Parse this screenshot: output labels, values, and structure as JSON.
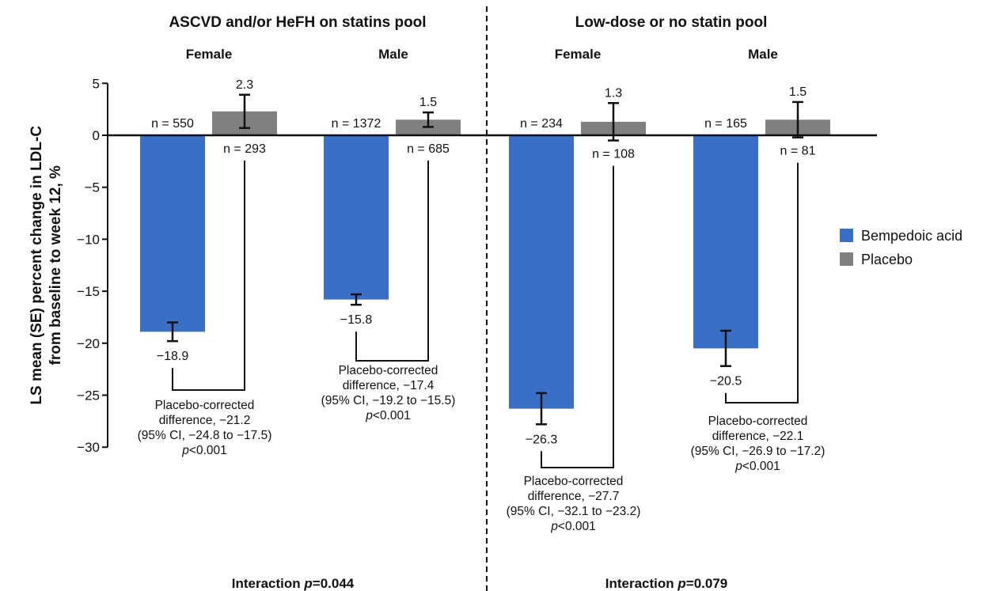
{
  "chart_data": {
    "type": "bar",
    "ylabel_lines": [
      "LS mean (SE) percent change in LDL-C",
      "from baseline to week 12, %"
    ],
    "ylim": [
      -30,
      5
    ],
    "yticks": [
      "5",
      "0",
      "-5",
      "-10",
      "-15",
      "-20",
      "-25",
      "-30"
    ],
    "ytick_values": [
      5,
      0,
      -5,
      -10,
      -15,
      -20,
      -25,
      -30
    ],
    "legend": [
      {
        "name": "Bempedoic acid",
        "color": "#3a6fc8"
      },
      {
        "name": "Placebo",
        "color": "#808080"
      }
    ],
    "legend_position": "right",
    "pools": [
      {
        "title": "ASCVD and/or HeFH on statins pool",
        "interaction_prefix": "Interaction ",
        "interaction_italic": "p",
        "interaction_value": "=0.044",
        "groups": [
          {
            "sex": "Female",
            "bempedoic": {
              "value": -18.9,
              "se": 0.9,
              "label": "−18.9",
              "n": "n = 550"
            },
            "placebo": {
              "value": 2.3,
              "se": 1.6,
              "label": "2.3",
              "n": "n = 293"
            },
            "diff_lines": [
              "Placebo-corrected",
              "difference, −21.2",
              "(95% CI, −24.8 to −17.5)"
            ],
            "diff_p_italic": "p",
            "diff_p_value": "<0.001"
          },
          {
            "sex": "Male",
            "bempedoic": {
              "value": -15.8,
              "se": 0.5,
              "label": "−15.8",
              "n": "n = 1372"
            },
            "placebo": {
              "value": 1.5,
              "se": 0.7,
              "label": "1.5",
              "n": "n = 685"
            },
            "diff_lines": [
              "Placebo-corrected",
              "difference, −17.4",
              "(95% CI, −19.2 to −15.5)"
            ],
            "diff_p_italic": "p",
            "diff_p_value": "<0.001"
          }
        ]
      },
      {
        "title": "Low-dose or no statin pool",
        "interaction_prefix": "Interaction ",
        "interaction_italic": "p",
        "interaction_value": "=0.079",
        "groups": [
          {
            "sex": "Female",
            "bempedoic": {
              "value": -26.3,
              "se": 1.5,
              "label": "−26.3",
              "n": "n = 234"
            },
            "placebo": {
              "value": 1.3,
              "se": 1.8,
              "label": "1.3",
              "n": "n = 108"
            },
            "diff_lines": [
              "Placebo-corrected",
              "difference, −27.7",
              "(95% CI, −32.1 to −23.2)"
            ],
            "diff_p_italic": "p",
            "diff_p_value": "<0.001"
          },
          {
            "sex": "Male",
            "bempedoic": {
              "value": -20.5,
              "se": 1.7,
              "label": "−20.5",
              "n": "n = 165"
            },
            "placebo": {
              "value": 1.5,
              "se": 1.7,
              "label": "1.5",
              "n": "n = 81"
            },
            "diff_lines": [
              "Placebo-corrected",
              "difference, −22.1",
              "(95% CI, −26.9 to −17.2)"
            ],
            "diff_p_italic": "p",
            "diff_p_value": "<0.001"
          }
        ]
      }
    ]
  }
}
